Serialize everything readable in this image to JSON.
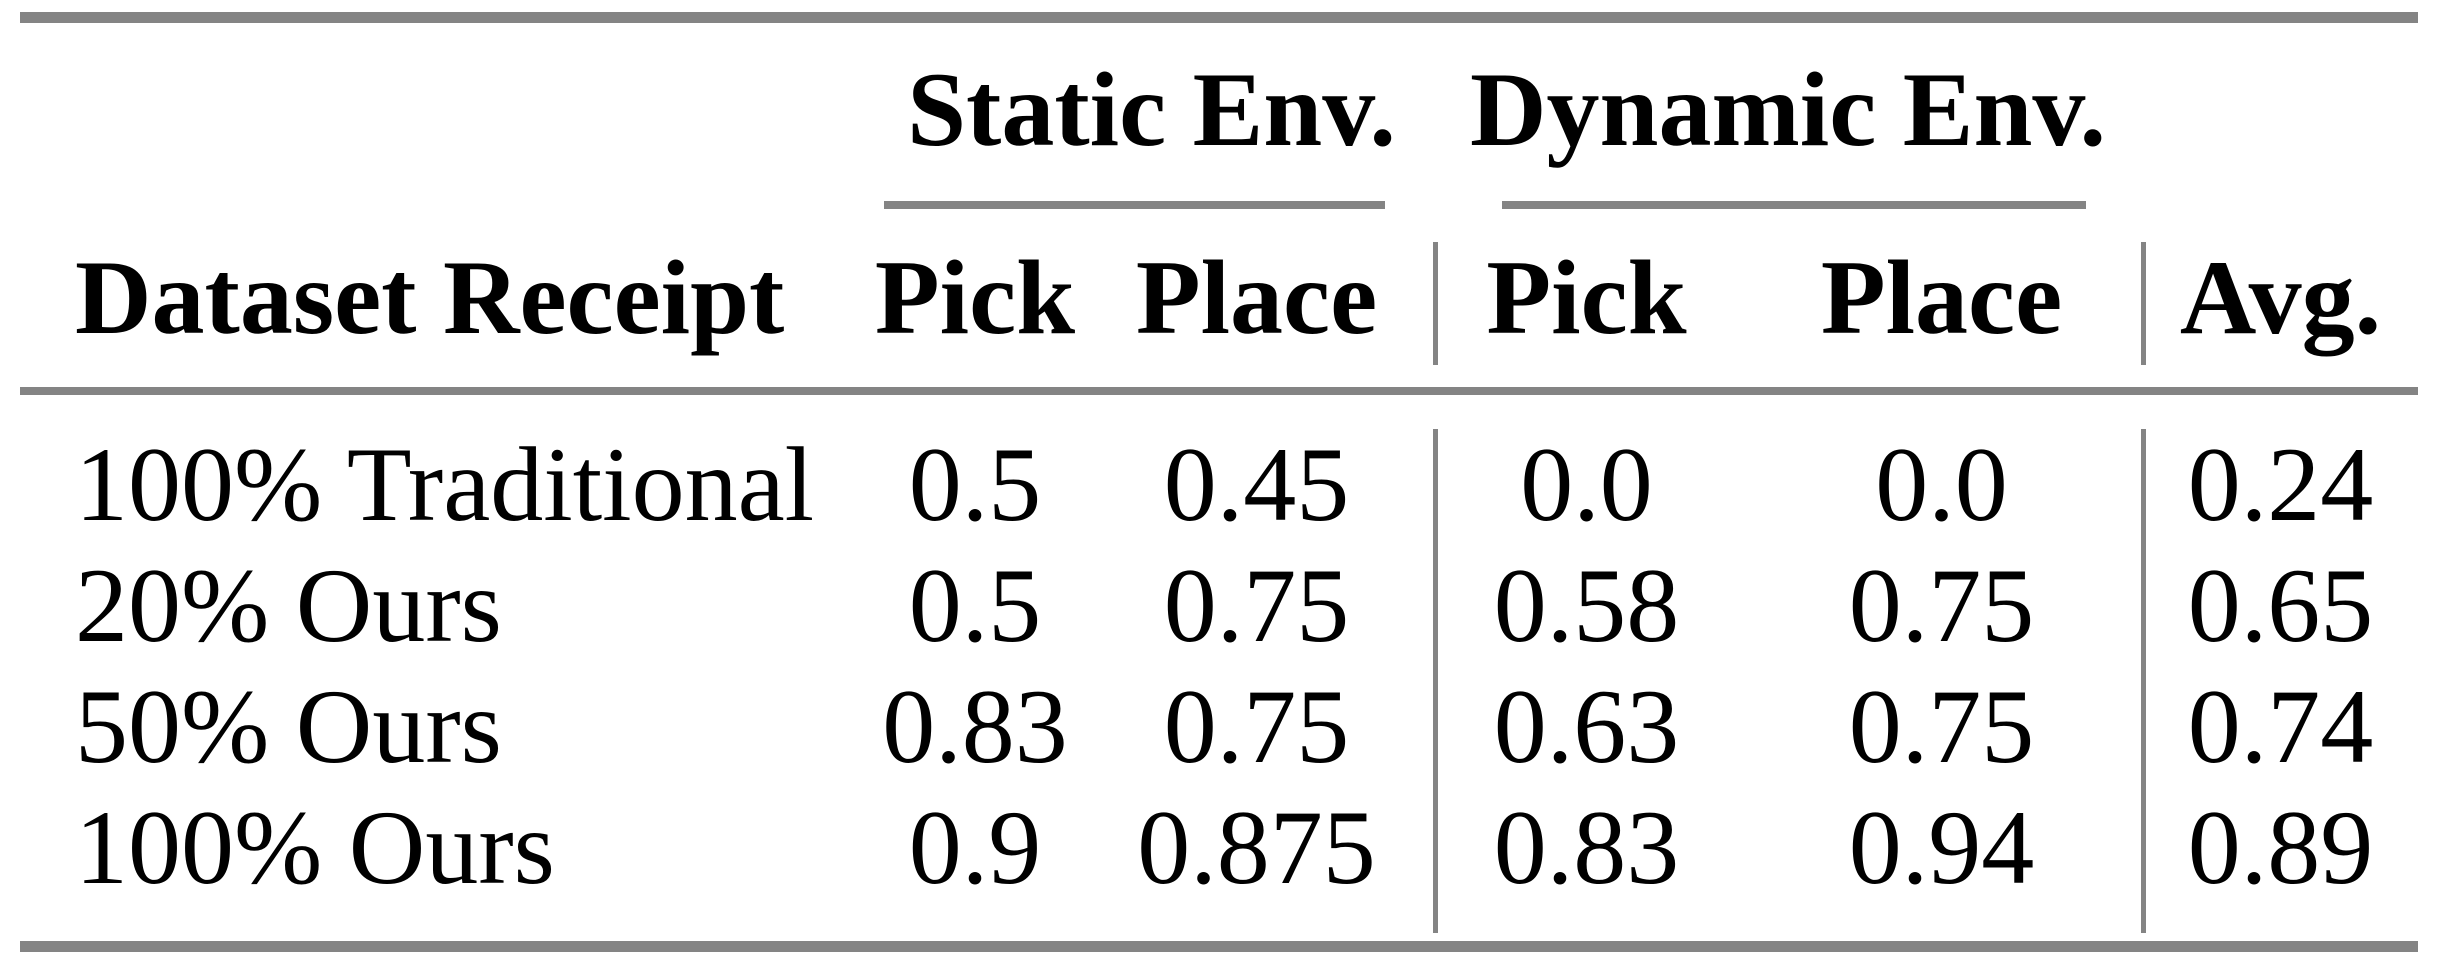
{
  "page": {
    "background": "#ffffff"
  },
  "table": {
    "header_groups": [
      {
        "id": "static",
        "label": "Static Env."
      },
      {
        "id": "dynamic",
        "label": "Dynamic Env."
      }
    ],
    "column_headers": {
      "row_label": "Dataset Receipt",
      "static_pick": "Pick",
      "static_place": "Place",
      "dynamic_pick": "Pick",
      "dynamic_place": "Place",
      "avg": "Avg."
    },
    "rows": [
      {
        "label": "100% Traditional",
        "static_pick": "0.5",
        "static_place": "0.45",
        "dynamic_pick": "0.0",
        "dynamic_place": "0.0",
        "avg": "0.24"
      },
      {
        "label": "20% Ours",
        "static_pick": "0.5",
        "static_place": "0.75",
        "dynamic_pick": "0.58",
        "dynamic_place": "0.75",
        "avg": "0.65"
      },
      {
        "label": "50% Ours",
        "static_pick": "0.83",
        "static_place": "0.75",
        "dynamic_pick": "0.63",
        "dynamic_place": "0.75",
        "avg": "0.74"
      },
      {
        "label": "100% Ours",
        "static_pick": "0.9",
        "static_place": "0.875",
        "dynamic_pick": "0.83",
        "dynamic_place": "0.94",
        "avg": "0.89"
      }
    ],
    "colors": {
      "rule_gray": "#848484",
      "text": "#000000"
    }
  },
  "chart_data": {
    "type": "table",
    "columns": [
      "Dataset Receipt",
      "Static Env. Pick",
      "Static Env. Place",
      "Dynamic Env. Pick",
      "Dynamic Env. Place",
      "Avg."
    ],
    "rows": [
      [
        "100% Traditional",
        0.5,
        0.45,
        0.0,
        0.0,
        0.24
      ],
      [
        "20% Ours",
        0.5,
        0.75,
        0.58,
        0.75,
        0.65
      ],
      [
        "50% Ours",
        0.83,
        0.75,
        0.63,
        0.75,
        0.74
      ],
      [
        "100% Ours",
        0.9,
        0.875,
        0.83,
        0.94,
        0.89
      ]
    ]
  }
}
